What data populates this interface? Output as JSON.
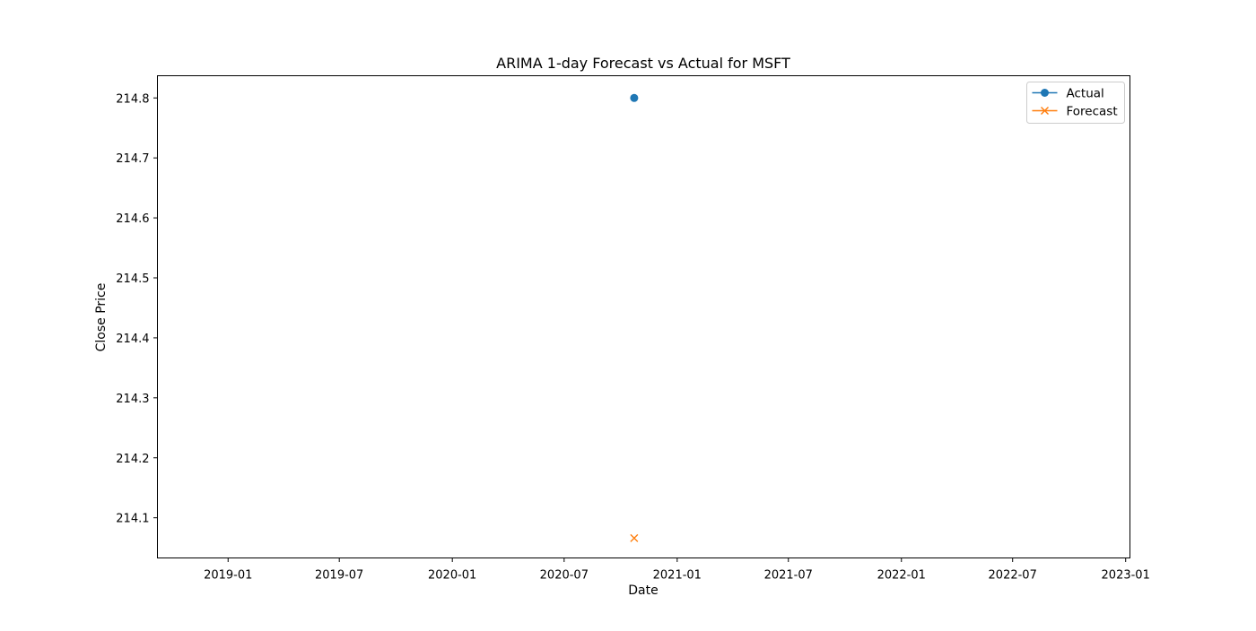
{
  "chart_data": {
    "type": "scatter",
    "title": "ARIMA 1-day Forecast vs Actual for MSFT",
    "xlabel": "Date",
    "ylabel": "Close Price",
    "x_axis_type": "date",
    "xlim": [
      "2018-09-08",
      "2023-01-08"
    ],
    "ylim": [
      214.033,
      214.837
    ],
    "x_ticks": [
      "2019-01",
      "2019-07",
      "2020-01",
      "2020-07",
      "2021-01",
      "2021-07",
      "2022-01",
      "2022-07",
      "2023-01"
    ],
    "y_ticks": [
      "214.1",
      "214.2",
      "214.3",
      "214.4",
      "214.5",
      "214.6",
      "214.7",
      "214.8"
    ],
    "grid": false,
    "legend_position": "upper right",
    "series": [
      {
        "name": "Actual",
        "color": "#1f77b4",
        "marker": "circle",
        "points": [
          {
            "x": "2020-10-23",
            "y": 214.8
          }
        ]
      },
      {
        "name": "Forecast",
        "color": "#ff7f0e",
        "marker": "x",
        "points": [
          {
            "x": "2020-10-23",
            "y": 214.066
          }
        ]
      }
    ]
  }
}
